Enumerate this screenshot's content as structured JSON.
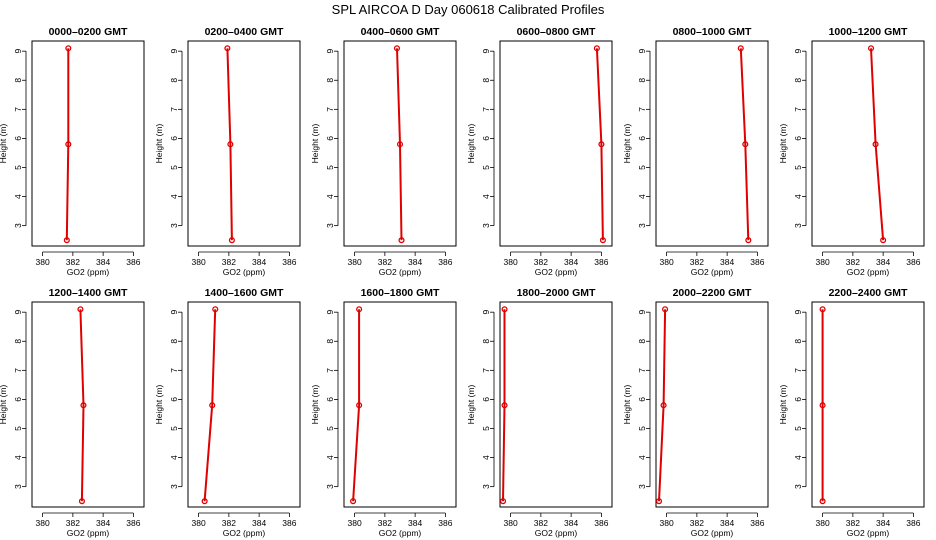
{
  "title": "SPL AIRCOA D  Day 060618  Calibrated Profiles",
  "colors": {
    "series": "#e00000",
    "axes": "#000000",
    "background": "#ffffff"
  },
  "chart_data": [
    {
      "type": "line",
      "title": "0000–0200 GMT",
      "xlabel": "GO2 (ppm)",
      "ylabel": "Height (m)",
      "xlim": [
        379.3,
        386.7
      ],
      "ylim": [
        2.3,
        9.35
      ],
      "xticks": [
        380,
        382,
        384,
        386
      ],
      "yticks": [
        3,
        4,
        5,
        6,
        7,
        8,
        9
      ],
      "x": [
        381.7,
        381.7,
        381.6
      ],
      "y": [
        9.1,
        5.8,
        2.5
      ]
    },
    {
      "type": "line",
      "title": "0200–0400 GMT",
      "xlabel": "GO2 (ppm)",
      "ylabel": "Height (m)",
      "xlim": [
        379.3,
        386.7
      ],
      "ylim": [
        2.3,
        9.35
      ],
      "xticks": [
        380,
        382,
        384,
        386
      ],
      "yticks": [
        3,
        4,
        5,
        6,
        7,
        8,
        9
      ],
      "x": [
        381.9,
        382.1,
        382.2
      ],
      "y": [
        9.1,
        5.8,
        2.5
      ]
    },
    {
      "type": "line",
      "title": "0400–0600 GMT",
      "xlabel": "GO2 (ppm)",
      "ylabel": "Height (m)",
      "xlim": [
        379.3,
        386.7
      ],
      "ylim": [
        2.3,
        9.35
      ],
      "xticks": [
        380,
        382,
        384,
        386
      ],
      "yticks": [
        3,
        4,
        5,
        6,
        7,
        8,
        9
      ],
      "x": [
        382.8,
        383.0,
        383.1
      ],
      "y": [
        9.1,
        5.8,
        2.5
      ]
    },
    {
      "type": "line",
      "title": "0600–0800 GMT",
      "xlabel": "GO2 (ppm)",
      "ylabel": "Height (m)",
      "xlim": [
        379.3,
        386.7
      ],
      "ylim": [
        2.3,
        9.35
      ],
      "xticks": [
        380,
        382,
        384,
        386
      ],
      "yticks": [
        3,
        4,
        5,
        6,
        7,
        8,
        9
      ],
      "x": [
        385.7,
        386.0,
        386.1
      ],
      "y": [
        9.1,
        5.8,
        2.5
      ]
    },
    {
      "type": "line",
      "title": "0800–1000 GMT",
      "xlabel": "GO2 (ppm)",
      "ylabel": "Height (m)",
      "xlim": [
        379.3,
        386.7
      ],
      "ylim": [
        2.3,
        9.35
      ],
      "xticks": [
        380,
        382,
        384,
        386
      ],
      "yticks": [
        3,
        4,
        5,
        6,
        7,
        8,
        9
      ],
      "x": [
        384.9,
        385.2,
        385.4
      ],
      "y": [
        9.1,
        5.8,
        2.5
      ]
    },
    {
      "type": "line",
      "title": "1000–1200 GMT",
      "xlabel": "GO2 (ppm)",
      "ylabel": "Height (m)",
      "xlim": [
        379.3,
        386.7
      ],
      "ylim": [
        2.3,
        9.35
      ],
      "xticks": [
        380,
        382,
        384,
        386
      ],
      "yticks": [
        3,
        4,
        5,
        6,
        7,
        8,
        9
      ],
      "x": [
        383.2,
        383.5,
        384.0
      ],
      "y": [
        9.1,
        5.8,
        2.5
      ]
    },
    {
      "type": "line",
      "title": "1200–1400 GMT",
      "xlabel": "GO2 (ppm)",
      "ylabel": "Height (m)",
      "xlim": [
        379.3,
        386.7
      ],
      "ylim": [
        2.3,
        9.35
      ],
      "xticks": [
        380,
        382,
        384,
        386
      ],
      "yticks": [
        3,
        4,
        5,
        6,
        7,
        8,
        9
      ],
      "x": [
        382.5,
        382.7,
        382.6
      ],
      "y": [
        9.1,
        5.8,
        2.5
      ]
    },
    {
      "type": "line",
      "title": "1400–1600 GMT",
      "xlabel": "GO2 (ppm)",
      "ylabel": "Height (m)",
      "xlim": [
        379.3,
        386.7
      ],
      "ylim": [
        2.3,
        9.35
      ],
      "xticks": [
        380,
        382,
        384,
        386
      ],
      "yticks": [
        3,
        4,
        5,
        6,
        7,
        8,
        9
      ],
      "x": [
        381.1,
        380.9,
        380.4
      ],
      "y": [
        9.1,
        5.8,
        2.5
      ]
    },
    {
      "type": "line",
      "title": "1600–1800 GMT",
      "xlabel": "GO2 (ppm)",
      "ylabel": "Height (m)",
      "xlim": [
        379.3,
        386.7
      ],
      "ylim": [
        2.3,
        9.35
      ],
      "xticks": [
        380,
        382,
        384,
        386
      ],
      "yticks": [
        3,
        4,
        5,
        6,
        7,
        8,
        9
      ],
      "x": [
        380.3,
        380.3,
        379.9
      ],
      "y": [
        9.1,
        5.8,
        2.5
      ]
    },
    {
      "type": "line",
      "title": "1800–2000 GMT",
      "xlabel": "GO2 (ppm)",
      "ylabel": "Height (m)",
      "xlim": [
        379.3,
        386.7
      ],
      "ylim": [
        2.3,
        9.35
      ],
      "xticks": [
        380,
        382,
        384,
        386
      ],
      "yticks": [
        3,
        4,
        5,
        6,
        7,
        8,
        9
      ],
      "x": [
        379.6,
        379.6,
        379.5
      ],
      "y": [
        9.1,
        5.8,
        2.5
      ]
    },
    {
      "type": "line",
      "title": "2000–2200 GMT",
      "xlabel": "GO2 (ppm)",
      "ylabel": "Height (m)",
      "xlim": [
        379.3,
        386.7
      ],
      "ylim": [
        2.3,
        9.35
      ],
      "xticks": [
        380,
        382,
        384,
        386
      ],
      "yticks": [
        3,
        4,
        5,
        6,
        7,
        8,
        9
      ],
      "x": [
        379.9,
        379.8,
        379.5
      ],
      "y": [
        9.1,
        5.8,
        2.5
      ]
    },
    {
      "type": "line",
      "title": "2200–2400 GMT",
      "xlabel": "GO2 (ppm)",
      "ylabel": "Height (m)",
      "xlim": [
        379.3,
        386.7
      ],
      "ylim": [
        2.3,
        9.35
      ],
      "xticks": [
        380,
        382,
        384,
        386
      ],
      "yticks": [
        3,
        4,
        5,
        6,
        7,
        8,
        9
      ],
      "x": [
        380.0,
        380.0,
        380.0
      ],
      "y": [
        9.1,
        5.8,
        2.5
      ]
    }
  ]
}
